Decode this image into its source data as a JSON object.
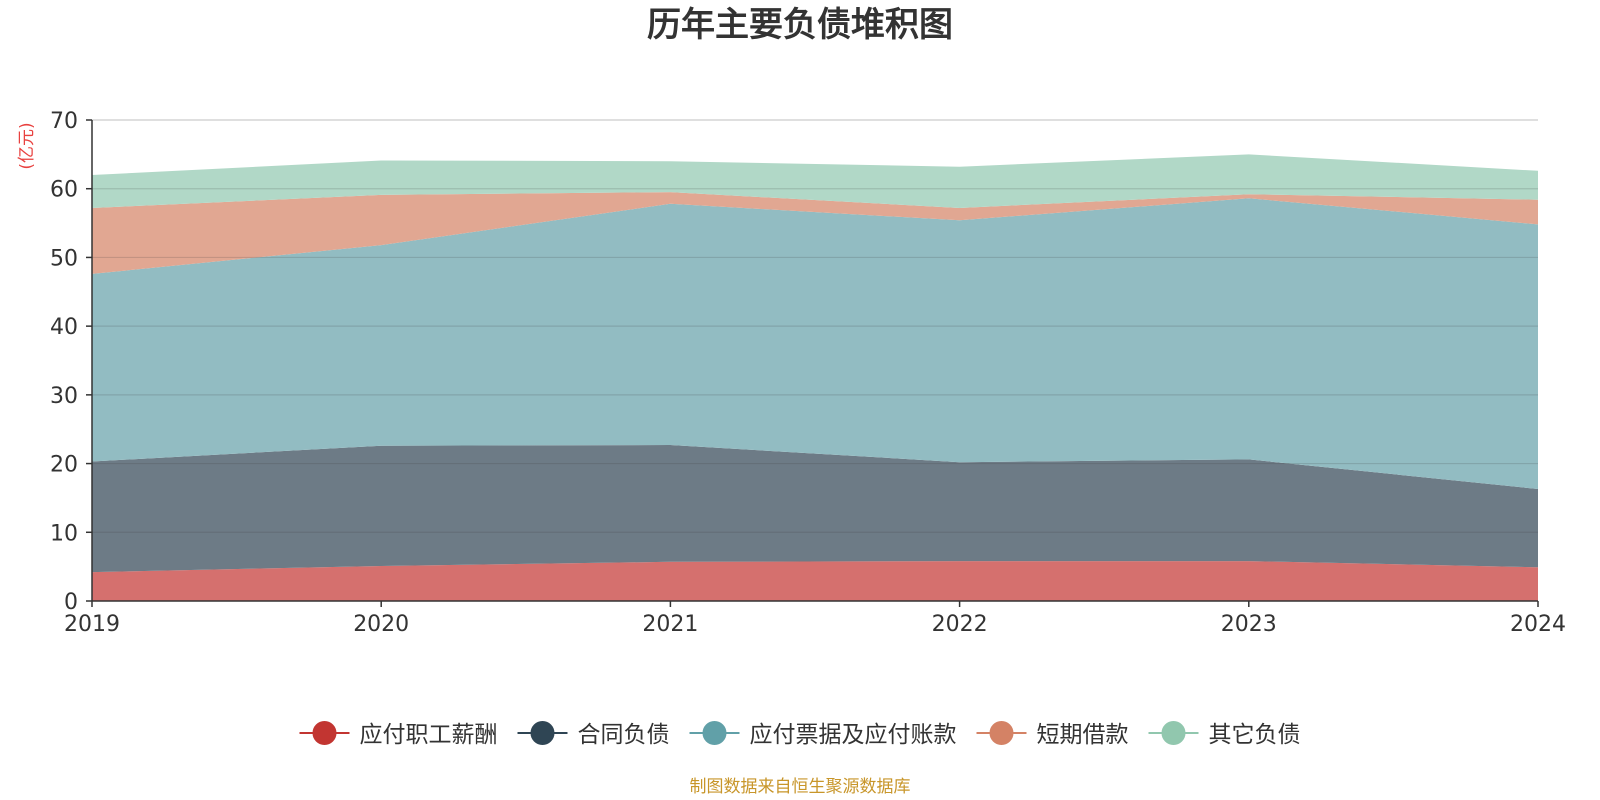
{
  "chart_data": {
    "type": "area",
    "stacked": true,
    "title": "历年主要负债堆积图",
    "unit_label": "(亿元)",
    "x": [
      "2019",
      "2020",
      "2021",
      "2022",
      "2023",
      "2024"
    ],
    "ylim": [
      0,
      70
    ],
    "yticks": [
      "0",
      "10",
      "20",
      "30",
      "40",
      "50",
      "60",
      "70"
    ],
    "series": [
      {
        "name": "应付职工薪酬",
        "color": "#c23531",
        "fill": "#d5706e",
        "values": [
          4.2,
          5.1,
          5.7,
          5.8,
          5.8,
          4.9
        ]
      },
      {
        "name": "合同负债",
        "color": "#2f4554",
        "fill": "#6d7b86",
        "values": [
          16.1,
          17.5,
          17.0,
          14.4,
          14.8,
          11.4
        ]
      },
      {
        "name": "应付票据及应付账款",
        "color": "#61a0a8",
        "fill": "#92bcc2",
        "values": [
          27.3,
          29.2,
          35.1,
          35.2,
          38.0,
          38.5
        ]
      },
      {
        "name": "短期借款",
        "color": "#d48265",
        "fill": "#e1a792",
        "values": [
          9.6,
          7.3,
          1.7,
          1.8,
          0.6,
          3.6
        ]
      },
      {
        "name": "其它负债",
        "color": "#91c7ae",
        "fill": "#b1d8c7",
        "values": [
          4.8,
          5.0,
          4.5,
          6.0,
          5.8,
          4.2
        ]
      }
    ],
    "legend_position": "bottom-center",
    "source": "制图数据来自恒生聚源数据库"
  }
}
